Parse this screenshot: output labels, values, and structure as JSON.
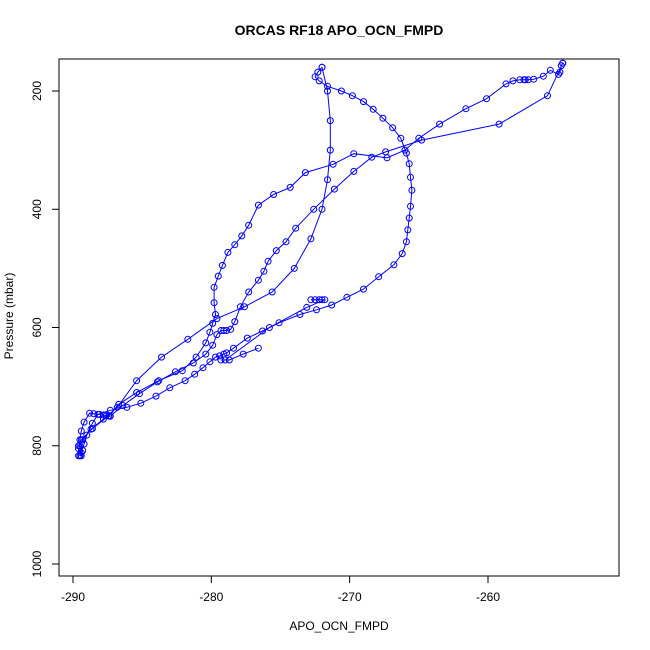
{
  "chart_data": {
    "type": "line",
    "title": "ORCAS RF18 APO_OCN_FMPD",
    "xlabel": "APO_OCN_FMPD",
    "ylabel": "Pressure (mbar)",
    "xlim": [
      -290,
      -250
    ],
    "ylim": [
      1000,
      150
    ],
    "y_reversed": true,
    "x_ticks": [
      -290,
      -280,
      -270,
      -260
    ],
    "x_tick_labels": [
      "-290",
      "-280",
      "-270",
      "-260"
    ],
    "y_ticks": [
      200,
      400,
      600,
      800,
      1000
    ],
    "y_tick_labels": [
      "200",
      "400",
      "600",
      "800",
      "1000"
    ],
    "grid": false,
    "legend": "none",
    "color": "#0000ff",
    "marker": "open-circle",
    "series": [
      {
        "x": [
          -289.4,
          -289.3,
          -289.5,
          -289.5,
          -289.4,
          -289.2,
          -288.8,
          -288.5,
          -288.1,
          -287.8,
          -287.6,
          -287.4,
          -287.3,
          -286.4,
          -285.2,
          -283.9,
          -282.6,
          -281.3,
          -280.4,
          -279.9,
          -279.6,
          -279.3,
          -279.1,
          -278.9,
          -278.6,
          -278.3,
          -277.9,
          -277.3,
          -276.6,
          -276.2,
          -275.9,
          -275.3,
          -274.6,
          -273.9,
          -272.6,
          -271.1,
          -269.7,
          -268.4,
          -267.4,
          -264.8,
          -259.2,
          -255.7,
          -254.6
        ],
        "y": [
          817,
          808,
          800,
          790,
          775,
          760,
          745,
          746,
          747,
          748,
          749,
          750,
          750,
          732,
          712,
          692,
          675,
          660,
          645,
          630,
          612,
          605,
          605,
          605,
          603,
          590,
          565,
          540,
          520,
          505,
          488,
          470,
          455,
          432,
          400,
          366,
          336,
          312,
          303,
          283,
          256,
          208,
          153
        ]
      },
      {
        "x": [
          -254.6,
          -254.7,
          -254.8,
          -254.9,
          -255.5,
          -256.0,
          -256.7,
          -257.1,
          -257.3,
          -257.4,
          -257.7,
          -258.2,
          -258.7,
          -260.1,
          -261.6,
          -263.5,
          -265.0,
          -266.0,
          -267.3,
          -269.7,
          -271.2,
          -273.2,
          -274.3,
          -275.5,
          -276.6,
          -277.3,
          -277.8,
          -278.3,
          -278.8,
          -279.2,
          -279.5,
          -279.8,
          -279.8,
          -279.7,
          -279.9,
          -280.1,
          -280.4,
          -281.1,
          -282.1,
          -283.8,
          -285.4,
          -286.7,
          -287.4,
          -288.6,
          -289.4,
          -289.6,
          -289.4,
          -289.5
        ],
        "y": [
          153,
          157,
          168,
          172,
          165,
          175,
          180,
          181,
          181,
          181,
          181,
          183,
          188,
          213,
          230,
          256,
          280,
          300,
          313,
          306,
          324,
          338,
          363,
          375,
          393,
          427,
          445,
          460,
          473,
          495,
          513,
          532,
          558,
          578,
          593,
          608,
          626,
          650,
          673,
          690,
          710,
          730,
          749,
          771,
          790,
          800,
          812,
          817
        ]
      },
      {
        "x": [
          -289.5,
          -289.2,
          -289.0,
          -288.6,
          -288.2,
          -287.3,
          -286.1,
          -285.1,
          -284.0,
          -283.0,
          -281.9,
          -281.2,
          -280.6,
          -280.1,
          -279.7,
          -279.4,
          -279.1,
          -278.9,
          -278.4,
          -277.4,
          -276.3,
          -275.1,
          -273.6,
          -272.4,
          -271.3,
          -270.2,
          -269.0,
          -267.9,
          -266.8,
          -266.2,
          -265.9,
          -265.8,
          -265.7,
          -265.6,
          -265.5,
          -265.6,
          -265.7,
          -265.9,
          -266.3,
          -266.9,
          -267.6,
          -268.3,
          -269.0,
          -269.8,
          -270.6,
          -271.6,
          -272.2,
          -272.5,
          -272.3,
          -272.0
        ],
        "y": [
          817,
          797,
          782,
          762,
          747,
          740,
          735,
          728,
          716,
          702,
          690,
          679,
          668,
          658,
          650,
          648,
          645,
          643,
          635,
          618,
          606,
          592,
          578,
          570,
          562,
          549,
          535,
          514,
          494,
          475,
          455,
          435,
          415,
          395,
          368,
          346,
          323,
          305,
          280,
          262,
          246,
          231,
          218,
          208,
          200,
          192,
          183,
          176,
          168,
          160
        ]
      },
      {
        "x": [
          -272.0,
          -271.6,
          -271.4,
          -271.4,
          -271.6,
          -272.0,
          -272.8,
          -274.0,
          -275.6,
          -277.6,
          -279.6,
          -281.7,
          -283.6,
          -285.4,
          -286.8,
          -287.8,
          -288.7,
          -289.3,
          -289.6,
          -289.6
        ],
        "y": [
          160,
          200,
          250,
          300,
          350,
          400,
          450,
          500,
          540,
          565,
          585,
          620,
          650,
          690,
          735,
          755,
          772,
          790,
          805,
          817
        ]
      },
      {
        "x": [
          -272.8,
          -272.5,
          -272.2,
          -272.0,
          -271.8,
          -273.1,
          -275.8,
          -279.0,
          -279.3,
          -278.7,
          -277.7,
          -276.6
        ],
        "y": [
          553,
          553,
          553,
          553,
          553,
          566,
          600,
          655,
          655,
          655,
          645,
          635
        ]
      }
    ]
  }
}
